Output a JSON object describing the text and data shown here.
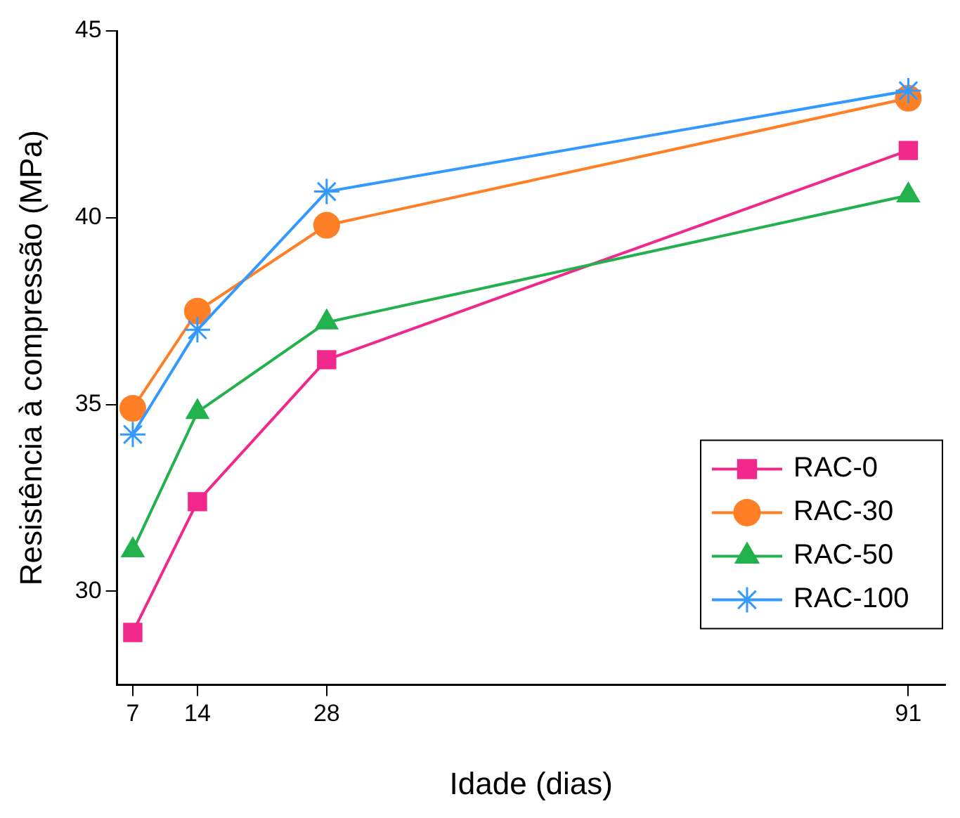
{
  "chart_data": {
    "type": "line",
    "xlabel": "Idade (dias)",
    "ylabel": "Resistência à compressão (MPa)",
    "x": [
      7,
      14,
      28,
      91
    ],
    "series": [
      {
        "name": "RAC-0",
        "color": "#f0288c",
        "marker": "square",
        "values": [
          28.9,
          32.4,
          36.2,
          41.8
        ]
      },
      {
        "name": "RAC-30",
        "color": "#ff7f27",
        "marker": "circle",
        "values": [
          34.9,
          37.5,
          39.8,
          43.2
        ]
      },
      {
        "name": "RAC-50",
        "color": "#22b14c",
        "marker": "triangle",
        "values": [
          31.1,
          34.8,
          37.2,
          40.6
        ]
      },
      {
        "name": "RAC-100",
        "color": "#3399ff",
        "marker": "cross",
        "values": [
          34.2,
          37.0,
          40.7,
          43.4
        ]
      }
    ],
    "xlim": [
      5.3,
      95
    ],
    "xticks": [
      7,
      14,
      28,
      91
    ],
    "ylim": [
      27.5,
      45
    ],
    "yticks": [
      30,
      35,
      40,
      45
    ],
    "grid": false,
    "legend": "bottom right",
    "line_style": "solid"
  }
}
